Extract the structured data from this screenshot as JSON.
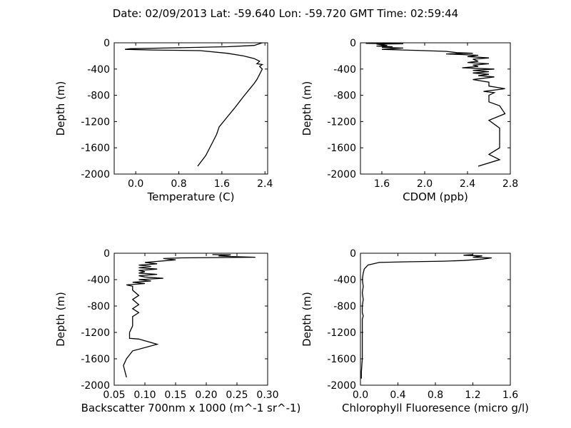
{
  "figure": {
    "title": "Date: 02/09/2013  Lat:  -59.640 Lon:  -59.720  GMT Time: 02:59:44"
  },
  "chart_data": [
    {
      "type": "line",
      "id": "temperature",
      "xlabel": "Temperature (C)",
      "ylabel": "Depth (m)",
      "xlim": [
        -0.4,
        2.45
      ],
      "ylim": [
        -2000,
        0
      ],
      "xticks": [
        "0.0",
        "0.8",
        "1.6",
        "2.4"
      ],
      "yticks": [
        "0",
        "-400",
        "-800",
        "-1200",
        "-1600",
        "-2000"
      ],
      "points": [
        [
          2.35,
          0
        ],
        [
          2.2,
          -40
        ],
        [
          1.7,
          -60
        ],
        [
          0.5,
          -80
        ],
        [
          -0.1,
          -90
        ],
        [
          -0.2,
          -100
        ],
        [
          0.3,
          -110
        ],
        [
          1.2,
          -120
        ],
        [
          1.7,
          -160
        ],
        [
          2.0,
          -200
        ],
        [
          2.2,
          -240
        ],
        [
          2.3,
          -280
        ],
        [
          2.25,
          -320
        ],
        [
          2.35,
          -330
        ],
        [
          2.3,
          -360
        ],
        [
          2.35,
          -400
        ],
        [
          2.3,
          -480
        ],
        [
          2.25,
          -560
        ],
        [
          2.2,
          -620
        ],
        [
          2.1,
          -720
        ],
        [
          2.0,
          -820
        ],
        [
          1.85,
          -980
        ],
        [
          1.7,
          -1130
        ],
        [
          1.55,
          -1280
        ],
        [
          1.5,
          -1400
        ],
        [
          1.4,
          -1560
        ],
        [
          1.3,
          -1720
        ],
        [
          1.15,
          -1880
        ]
      ]
    },
    {
      "type": "line",
      "id": "cdom",
      "xlabel": "CDOM (ppb)",
      "ylabel": "Depth (m)",
      "xlim": [
        1.4,
        2.8
      ],
      "ylim": [
        -2000,
        0
      ],
      "xticks": [
        "1.6",
        "2.0",
        "2.4",
        "2.8"
      ],
      "yticks": [
        "0",
        "-400",
        "-800",
        "-1200",
        "-1600",
        "-2000"
      ],
      "points": [
        [
          1.45,
          -10
        ],
        [
          1.8,
          -15
        ],
        [
          1.55,
          -20
        ],
        [
          1.65,
          -40
        ],
        [
          1.55,
          -50
        ],
        [
          1.7,
          -60
        ],
        [
          1.6,
          -70
        ],
        [
          1.8,
          -80
        ],
        [
          1.6,
          -100
        ],
        [
          1.8,
          -110
        ],
        [
          2.0,
          -120
        ],
        [
          2.2,
          -130
        ],
        [
          2.3,
          -150
        ],
        [
          2.45,
          -160
        ],
        [
          2.2,
          -170
        ],
        [
          2.5,
          -190
        ],
        [
          2.4,
          -210
        ],
        [
          2.6,
          -230
        ],
        [
          2.45,
          -250
        ],
        [
          2.5,
          -280
        ],
        [
          2.4,
          -300
        ],
        [
          2.6,
          -320
        ],
        [
          2.45,
          -340
        ],
        [
          2.5,
          -360
        ],
        [
          2.35,
          -380
        ],
        [
          2.65,
          -400
        ],
        [
          2.45,
          -420
        ],
        [
          2.6,
          -440
        ],
        [
          2.45,
          -460
        ],
        [
          2.6,
          -480
        ],
        [
          2.5,
          -500
        ],
        [
          2.65,
          -520
        ],
        [
          2.55,
          -540
        ],
        [
          2.45,
          -560
        ],
        [
          2.6,
          -600
        ],
        [
          2.6,
          -660
        ],
        [
          2.75,
          -700
        ],
        [
          2.55,
          -740
        ],
        [
          2.65,
          -760
        ],
        [
          2.6,
          -800
        ],
        [
          2.6,
          -900
        ],
        [
          2.7,
          -960
        ],
        [
          2.75,
          -1080
        ],
        [
          2.6,
          -1180
        ],
        [
          2.7,
          -1300
        ],
        [
          2.7,
          -1600
        ],
        [
          2.6,
          -1700
        ],
        [
          2.7,
          -1780
        ],
        [
          2.5,
          -1880
        ]
      ]
    },
    {
      "type": "line",
      "id": "backscatter",
      "xlabel": "Backscatter 700nm x 1000 (m^-1 sr^-1)",
      "ylabel": "Depth (m)",
      "xlim": [
        0.05,
        0.3
      ],
      "ylim": [
        -2000,
        0
      ],
      "xticks": [
        "0.05",
        "0.10",
        "0.15",
        "0.20",
        "0.25",
        "0.30"
      ],
      "yticks": [
        "0",
        "-400",
        "-800",
        "-1200",
        "-1600",
        "-2000"
      ],
      "points": [
        [
          0.21,
          -20
        ],
        [
          0.24,
          -25
        ],
        [
          0.22,
          -40
        ],
        [
          0.24,
          -50
        ],
        [
          0.28,
          -60
        ],
        [
          0.16,
          -70
        ],
        [
          0.13,
          -80
        ],
        [
          0.15,
          -100
        ],
        [
          0.1,
          -140
        ],
        [
          0.12,
          -160
        ],
        [
          0.09,
          -180
        ],
        [
          0.11,
          -200
        ],
        [
          0.09,
          -220
        ],
        [
          0.12,
          -240
        ],
        [
          0.09,
          -260
        ],
        [
          0.1,
          -280
        ],
        [
          0.09,
          -300
        ],
        [
          0.12,
          -320
        ],
        [
          0.09,
          -340
        ],
        [
          0.1,
          -360
        ],
        [
          0.13,
          -380
        ],
        [
          0.09,
          -400
        ],
        [
          0.11,
          -420
        ],
        [
          0.08,
          -440
        ],
        [
          0.1,
          -460
        ],
        [
          0.07,
          -480
        ],
        [
          0.08,
          -500
        ],
        [
          0.08,
          -560
        ],
        [
          0.09,
          -640
        ],
        [
          0.08,
          -700
        ],
        [
          0.09,
          -780
        ],
        [
          0.08,
          -840
        ],
        [
          0.09,
          -900
        ],
        [
          0.08,
          -960
        ],
        [
          0.08,
          -1100
        ],
        [
          0.075,
          -1200
        ],
        [
          0.075,
          -1290
        ],
        [
          0.09,
          -1300
        ],
        [
          0.12,
          -1380
        ],
        [
          0.08,
          -1480
        ],
        [
          0.07,
          -1600
        ],
        [
          0.065,
          -1700
        ],
        [
          0.07,
          -1880
        ]
      ]
    },
    {
      "type": "line",
      "id": "chlorophyll",
      "xlabel": "Chlorophyll Fluoresence (micro g/l)",
      "ylabel": "Depth (m)",
      "xlim": [
        0.0,
        1.6
      ],
      "ylim": [
        -2000,
        0
      ],
      "xticks": [
        "0.0",
        "0.4",
        "0.8",
        "1.2",
        "1.6"
      ],
      "yticks": [
        "0",
        "-400",
        "-800",
        "-1200",
        "-1600",
        "-2000"
      ],
      "points": [
        [
          1.2,
          -20
        ],
        [
          1.1,
          -30
        ],
        [
          1.3,
          -40
        ],
        [
          1.2,
          -60
        ],
        [
          1.4,
          -70
        ],
        [
          1.3,
          -90
        ],
        [
          1.1,
          -110
        ],
        [
          0.9,
          -120
        ],
        [
          0.5,
          -130
        ],
        [
          0.2,
          -140
        ],
        [
          0.08,
          -180
        ],
        [
          0.04,
          -240
        ],
        [
          0.03,
          -300
        ],
        [
          0.02,
          -400
        ],
        [
          0.03,
          -500
        ],
        [
          0.02,
          -600
        ],
        [
          0.03,
          -700
        ],
        [
          0.02,
          -800
        ],
        [
          0.02,
          -900
        ],
        [
          0.03,
          -950
        ],
        [
          0.02,
          -1000
        ],
        [
          0.02,
          -1200
        ],
        [
          0.02,
          -1400
        ],
        [
          0.02,
          -1600
        ],
        [
          0.01,
          -1800
        ],
        [
          0.01,
          -1900
        ]
      ]
    }
  ]
}
